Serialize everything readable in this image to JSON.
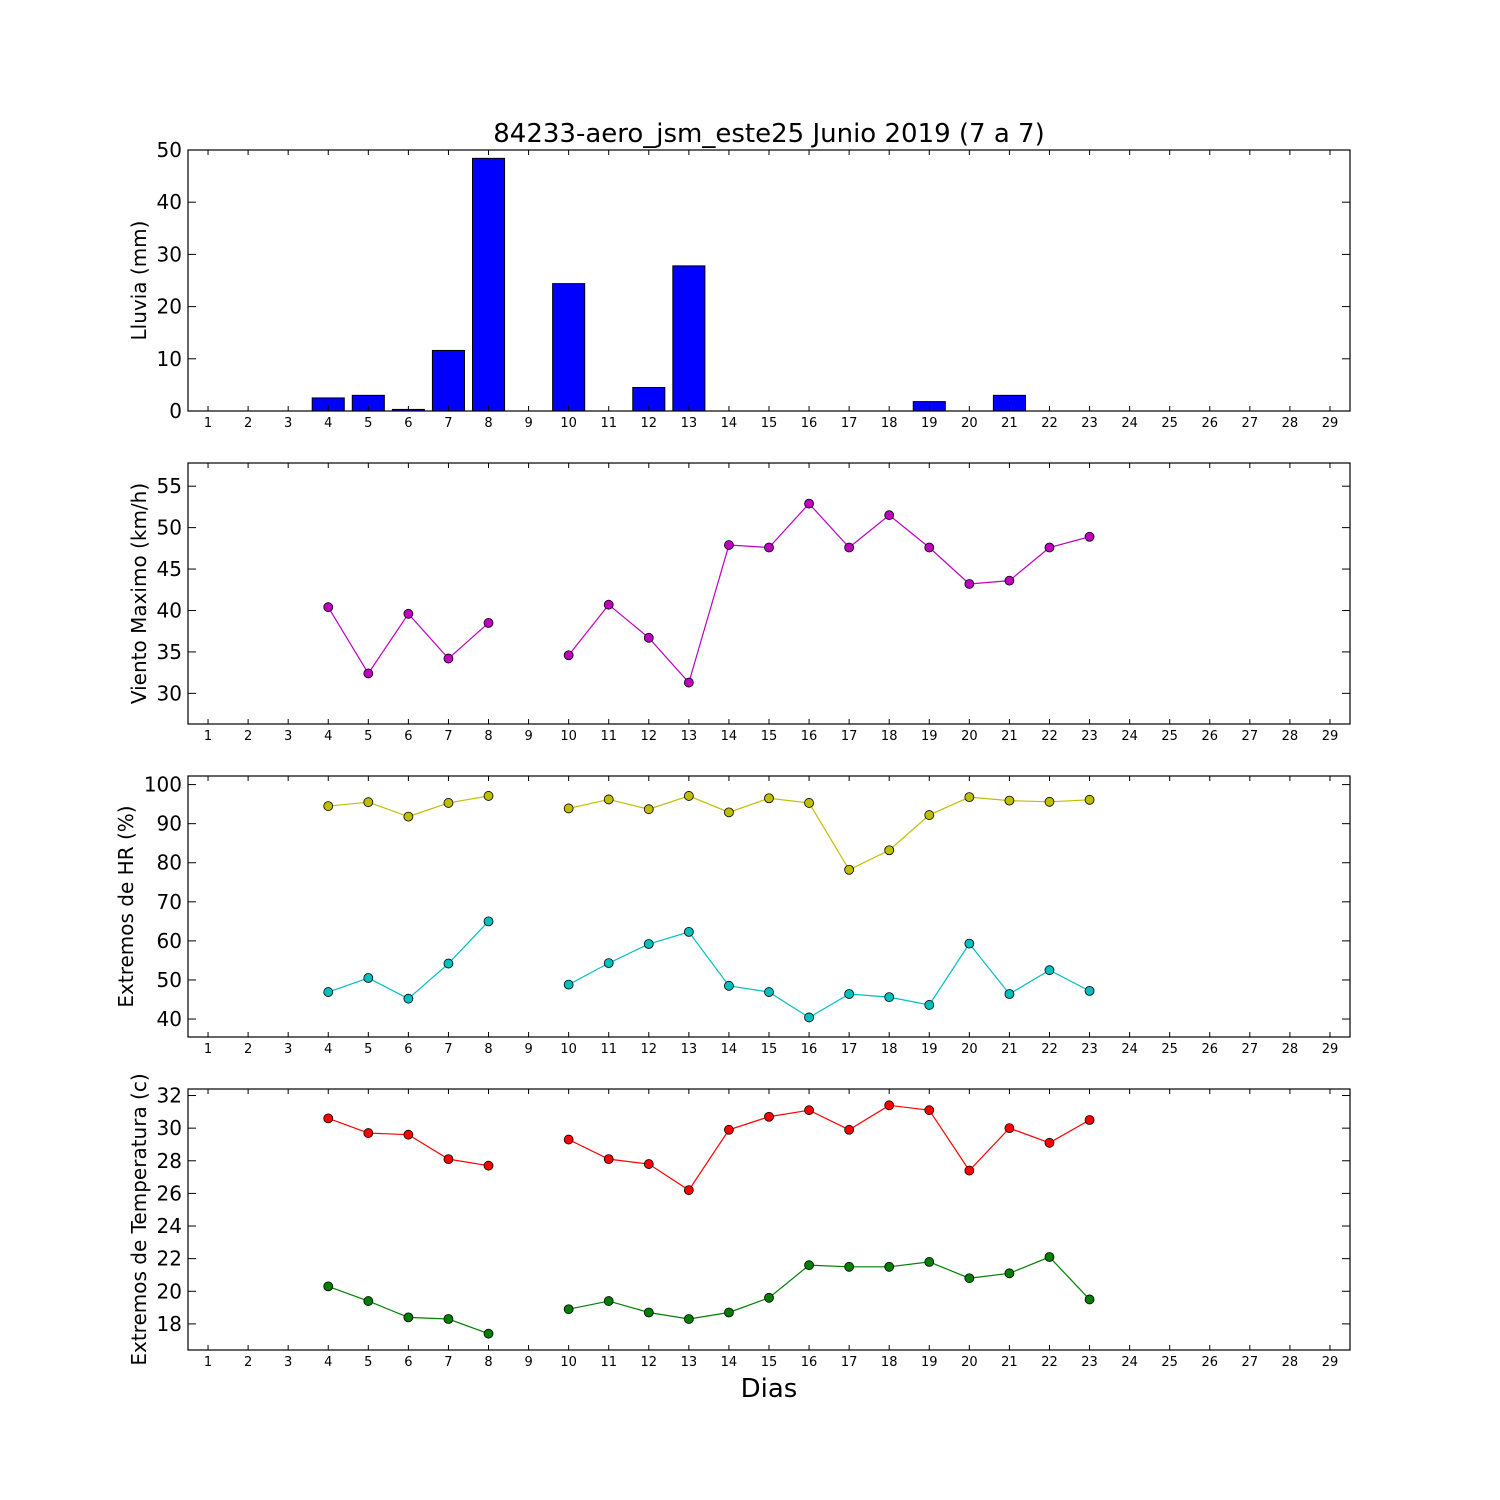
{
  "figure": {
    "title": "84233-aero_jsm_este25 Junio 2019  (7 a 7)",
    "xlabel": "Dias"
  },
  "chart_data": [
    {
      "type": "bar",
      "ylabel": "Lluvia (mm)",
      "ylim": [
        0,
        50
      ],
      "yticks": [
        0,
        10,
        20,
        30,
        40,
        50
      ],
      "xlim": [
        0.5,
        29.5
      ],
      "xticks": [
        1,
        2,
        3,
        4,
        5,
        6,
        7,
        8,
        9,
        10,
        11,
        12,
        13,
        14,
        15,
        16,
        17,
        18,
        19,
        20,
        21,
        22,
        23,
        24,
        25,
        26,
        27,
        28,
        29
      ],
      "series": [
        {
          "color": "#0000ff",
          "x": [
            1,
            2,
            3,
            4,
            5,
            6,
            7,
            8,
            9,
            10,
            11,
            12,
            13,
            14,
            15,
            16,
            17,
            18,
            19,
            20,
            21,
            22,
            23
          ],
          "values": [
            0,
            0,
            0,
            2.5,
            3,
            0.3,
            11.6,
            48.4,
            0,
            24.4,
            0,
            4.5,
            27.8,
            0,
            0,
            0,
            0,
            0,
            1.8,
            0,
            3,
            0,
            0
          ]
        }
      ],
      "grid": false
    },
    {
      "type": "line",
      "ylabel": "Viento Maximo (km/h)",
      "ylim": [
        26.3,
        57.8
      ],
      "yticks": [
        30,
        35,
        40,
        45,
        50,
        55
      ],
      "xlim": [
        0.5,
        29.5
      ],
      "xticks": [
        1,
        2,
        3,
        4,
        5,
        6,
        7,
        8,
        9,
        10,
        11,
        12,
        13,
        14,
        15,
        16,
        17,
        18,
        19,
        20,
        21,
        22,
        23,
        24,
        25,
        26,
        27,
        28,
        29
      ],
      "series": [
        {
          "color": "#bf00bf",
          "x": [
            4,
            5,
            6,
            7,
            8,
            9,
            10,
            11,
            12,
            13,
            14,
            15,
            16,
            17,
            18,
            19,
            20,
            21,
            22,
            23
          ],
          "values": [
            40.4,
            32.4,
            39.6,
            34.2,
            38.5,
            null,
            34.6,
            40.7,
            36.7,
            31.3,
            47.9,
            47.6,
            52.9,
            47.6,
            51.5,
            47.6,
            43.2,
            43.6,
            47.6,
            48.9
          ]
        }
      ],
      "grid": false
    },
    {
      "type": "line",
      "ylabel": "Extremos de HR (%)",
      "ylim": [
        35.4,
        102.2
      ],
      "yticks": [
        40,
        50,
        60,
        70,
        80,
        90,
        100
      ],
      "xlim": [
        0.5,
        29.5
      ],
      "xticks": [
        1,
        2,
        3,
        4,
        5,
        6,
        7,
        8,
        9,
        10,
        11,
        12,
        13,
        14,
        15,
        16,
        17,
        18,
        19,
        20,
        21,
        22,
        23,
        24,
        25,
        26,
        27,
        28,
        29
      ],
      "series": [
        {
          "color": "#bfbf00",
          "x": [
            4,
            5,
            6,
            7,
            8,
            9,
            10,
            11,
            12,
            13,
            14,
            15,
            16,
            17,
            18,
            19,
            20,
            21,
            22,
            23
          ],
          "values": [
            94.5,
            95.5,
            91.8,
            95.3,
            97.1,
            null,
            93.9,
            96.2,
            93.7,
            97.1,
            92.9,
            96.5,
            95.3,
            78.2,
            83.2,
            92.2,
            96.8,
            95.9,
            95.6,
            96.1
          ]
        },
        {
          "color": "#00bfbf",
          "x": [
            4,
            5,
            6,
            7,
            8,
            9,
            10,
            11,
            12,
            13,
            14,
            15,
            16,
            17,
            18,
            19,
            20,
            21,
            22,
            23
          ],
          "values": [
            46.9,
            50.5,
            45.2,
            54.2,
            65,
            null,
            48.8,
            54.3,
            59.2,
            62.3,
            48.5,
            46.9,
            40.4,
            46.4,
            45.6,
            43.6,
            59.3,
            46.4,
            52.5,
            47.2
          ]
        }
      ],
      "grid": false
    },
    {
      "type": "line",
      "ylabel": "Extremos de Temperatura (c)",
      "ylim": [
        16.4,
        32.4
      ],
      "yticks": [
        18,
        20,
        22,
        24,
        26,
        28,
        30,
        32
      ],
      "xlim": [
        0.5,
        29.5
      ],
      "xticks": [
        1,
        2,
        3,
        4,
        5,
        6,
        7,
        8,
        9,
        10,
        11,
        12,
        13,
        14,
        15,
        16,
        17,
        18,
        19,
        20,
        21,
        22,
        23,
        24,
        25,
        26,
        27,
        28,
        29
      ],
      "series": [
        {
          "color": "#ff0000",
          "x": [
            4,
            5,
            6,
            7,
            8,
            9,
            10,
            11,
            12,
            13,
            14,
            15,
            16,
            17,
            18,
            19,
            20,
            21,
            22,
            23
          ],
          "values": [
            30.6,
            29.7,
            29.6,
            28.1,
            27.7,
            null,
            29.3,
            28.1,
            27.8,
            26.2,
            29.9,
            30.7,
            31.1,
            29.9,
            31.4,
            31.1,
            27.4,
            30,
            29.1,
            30.5
          ]
        },
        {
          "color": "#007f00",
          "x": [
            4,
            5,
            6,
            7,
            8,
            9,
            10,
            11,
            12,
            13,
            14,
            15,
            16,
            17,
            18,
            19,
            20,
            21,
            22,
            23
          ],
          "values": [
            20.3,
            19.4,
            18.4,
            18.3,
            17.4,
            null,
            18.9,
            19.4,
            18.7,
            18.3,
            18.7,
            19.6,
            21.6,
            21.5,
            21.5,
            21.8,
            20.8,
            21.1,
            22.1,
            19.5
          ]
        }
      ],
      "grid": false
    }
  ]
}
